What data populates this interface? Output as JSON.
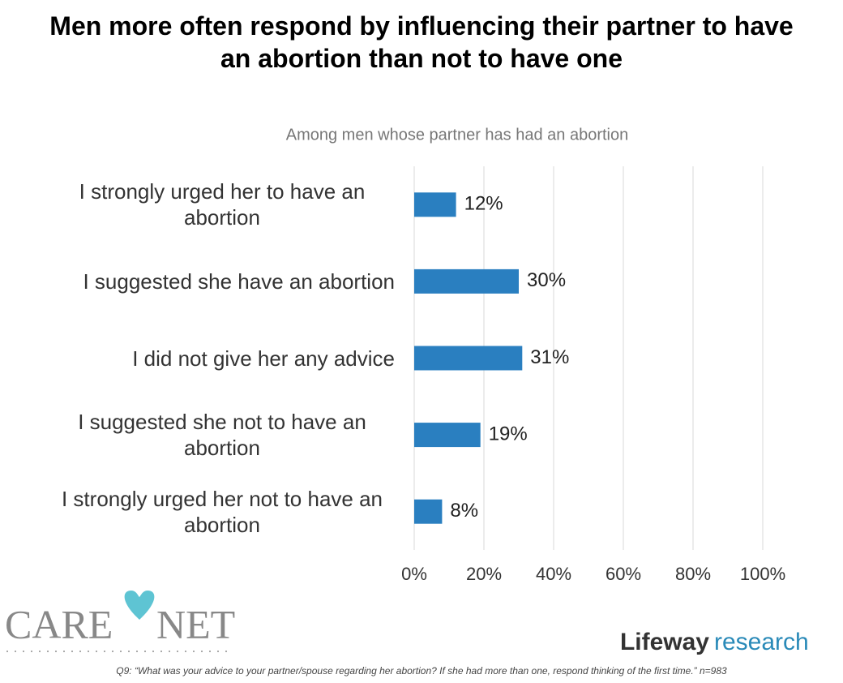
{
  "chart_data": {
    "type": "bar",
    "orientation": "horizontal",
    "title": "Men more often respond by influencing their partner to have an abortion than not to have one",
    "subtitle": "Among men whose partner has had an abortion",
    "categories": [
      "I strongly urged her to have an abortion",
      "I suggested she have an abortion",
      "I did not give her any advice",
      "I suggested she not to have an abortion",
      "I strongly urged her not to have an abortion"
    ],
    "values": [
      12,
      30,
      31,
      19,
      8
    ],
    "value_labels": [
      "12%",
      "30%",
      "31%",
      "19%",
      "8%"
    ],
    "color": "#2a7fc0",
    "xlim": [
      0,
      100
    ],
    "xticks": [
      {
        "value": 0,
        "label": "0%"
      },
      {
        "value": 20,
        "label": "20%"
      },
      {
        "value": 40,
        "label": "40%"
      },
      {
        "value": 60,
        "label": "60%"
      },
      {
        "value": 80,
        "label": "80%"
      },
      {
        "value": 100,
        "label": "100%"
      }
    ],
    "grid": true,
    "logos": [
      "CARE",
      "NET",
      "Lifeway",
      "research"
    ],
    "footnote": "Q9: “What was your advice to your partner/spouse regarding her abortion? If she had more than one, respond thinking of the first time.” n=983"
  }
}
